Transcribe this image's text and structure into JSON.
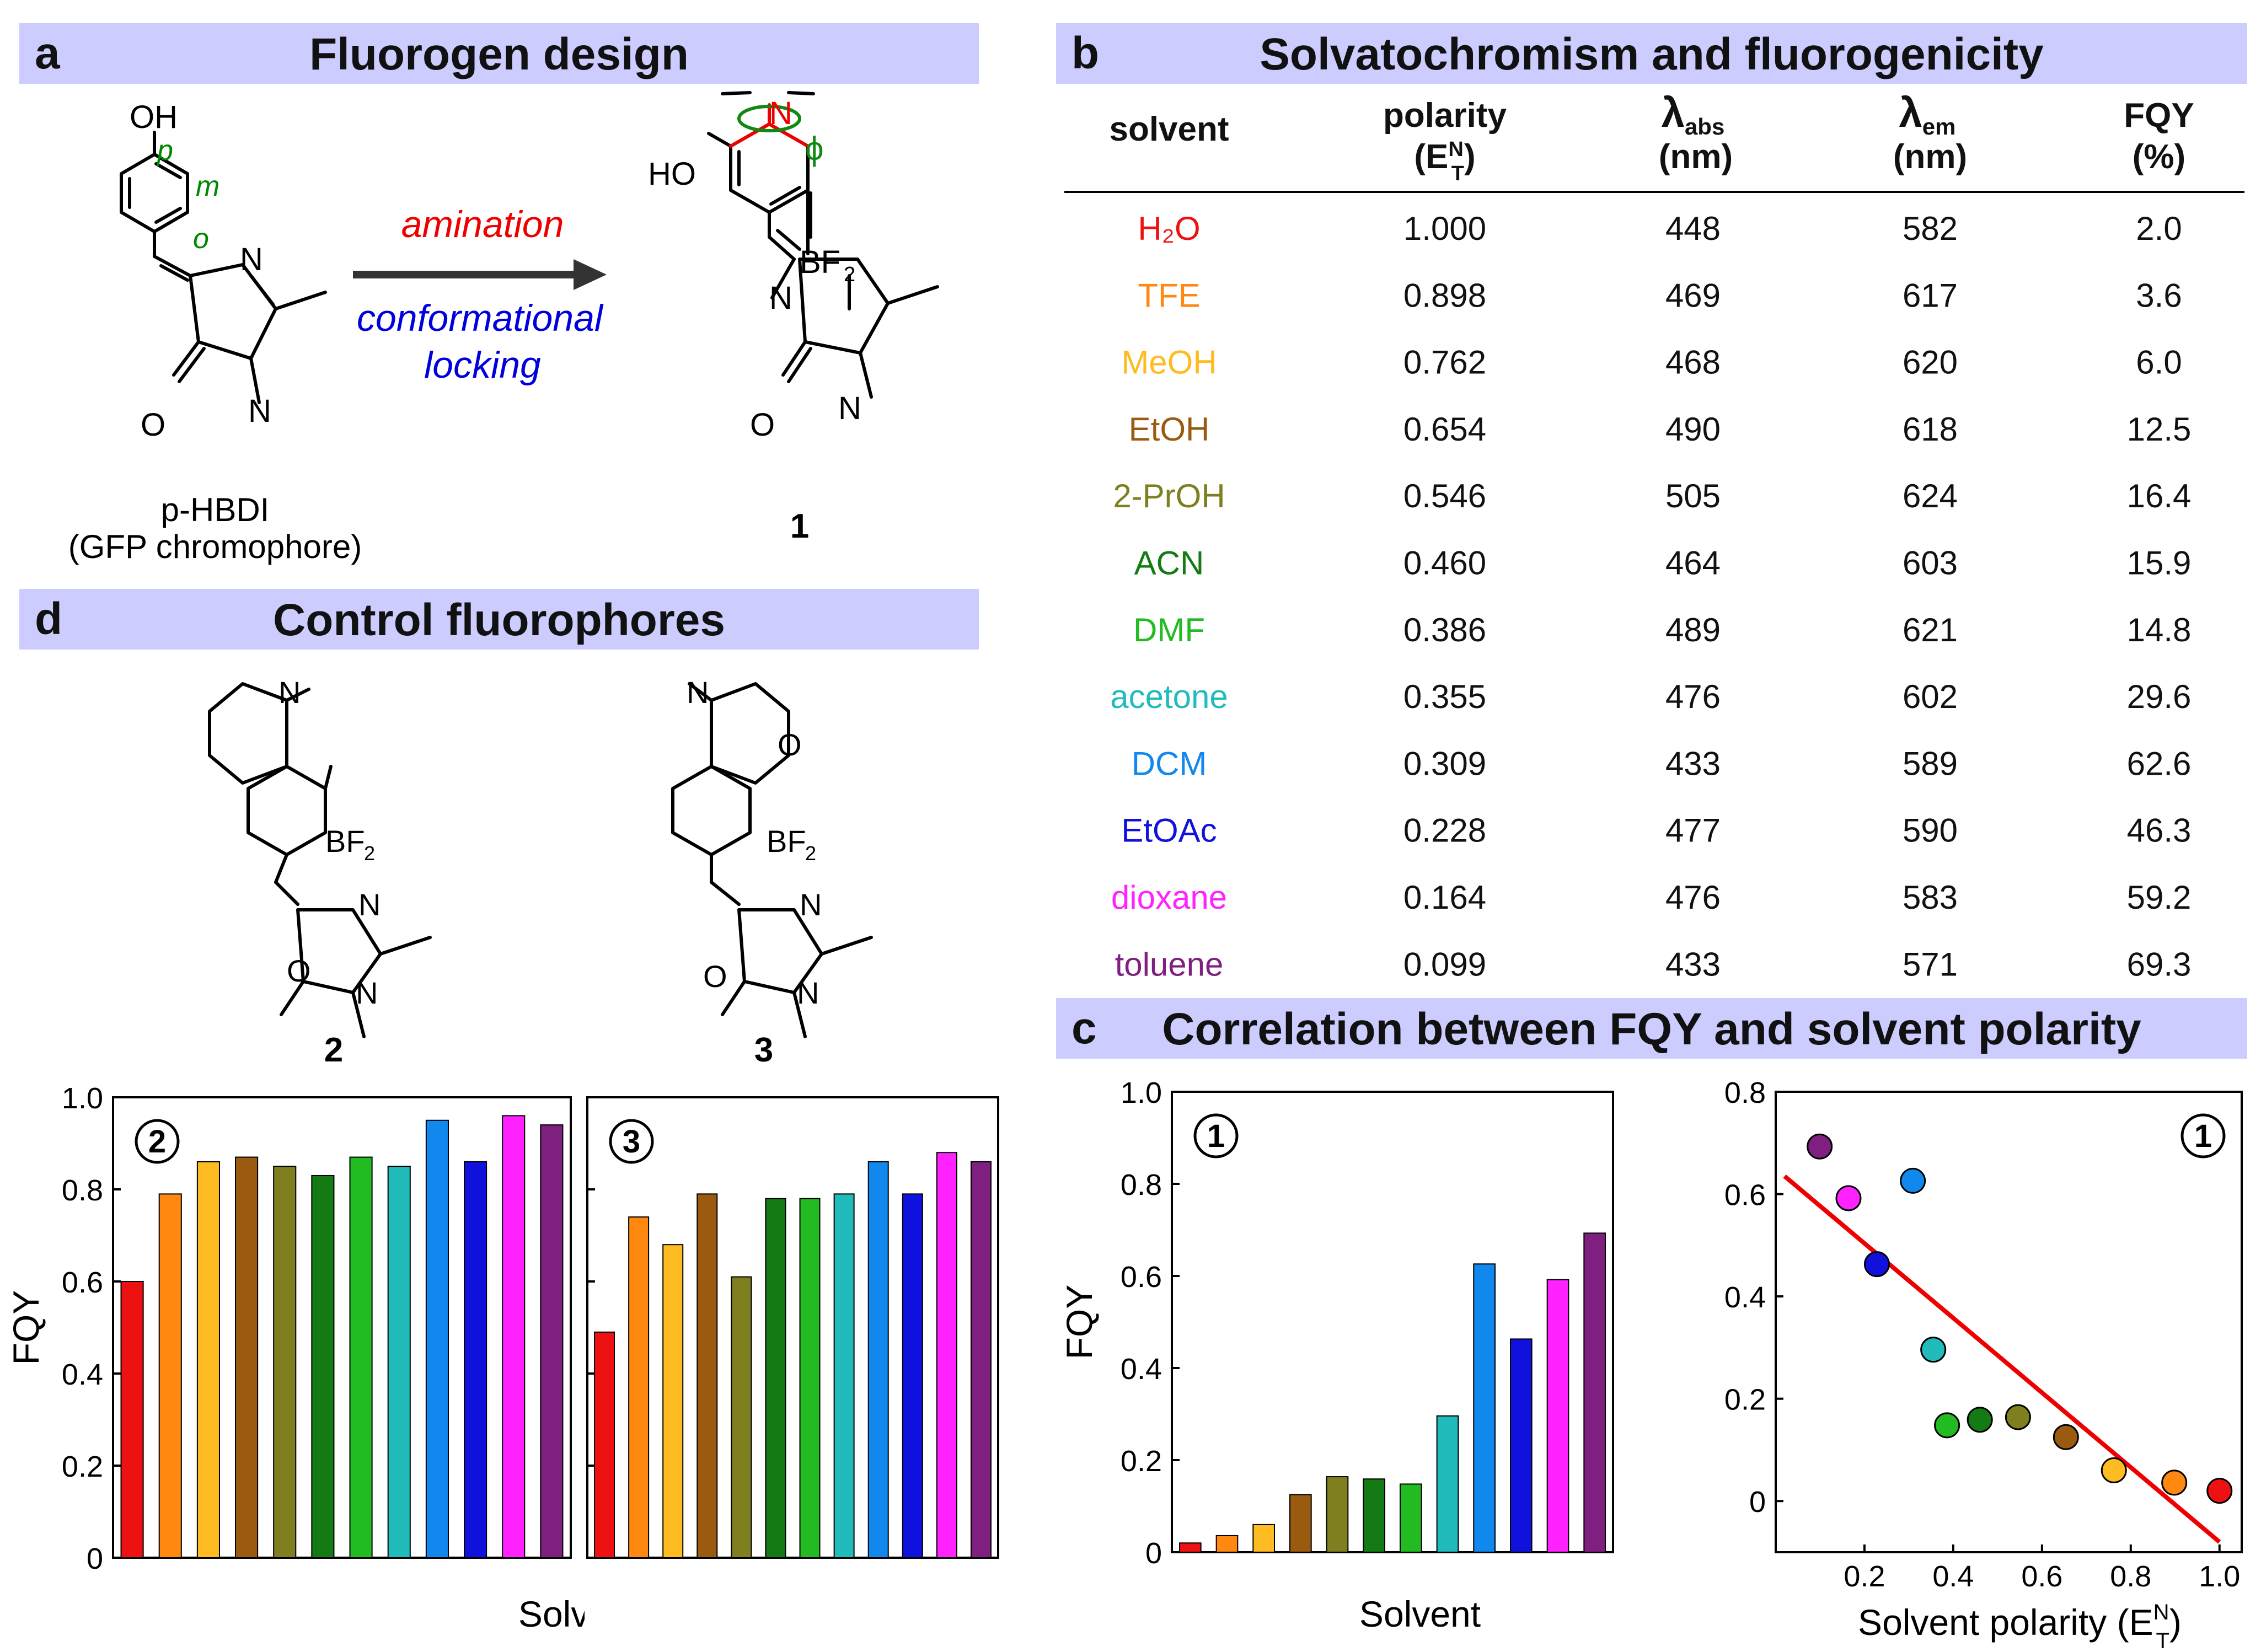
{
  "panels": {
    "a": {
      "label": "a",
      "title": "Fluorogen design"
    },
    "b": {
      "label": "b",
      "title": "Solvatochromism and fluorogenicity"
    },
    "c": {
      "label": "c",
      "title": "Correlation between FQY and solvent polarity"
    },
    "d": {
      "label": "d",
      "title": "Control fluorophores"
    }
  },
  "scheme_a": {
    "left_caption": [
      "p-HBDI",
      "(GFP chromophore)"
    ],
    "arrow_top": "amination",
    "arrow_bottom": [
      "conformational",
      "locking"
    ],
    "ring_labels": [
      "p",
      "m",
      "o"
    ],
    "compound_label": "1",
    "phi": "ϕ",
    "colors": {
      "amination": "#ee0000",
      "locking": "#0000dd",
      "ring_labels": "#008800"
    }
  },
  "scheme_d": {
    "labels": [
      "2",
      "3"
    ]
  },
  "table": {
    "headers": {
      "solvent": "solvent",
      "polarity": "polarity",
      "polarity_sym": "(E",
      "polarity_sup": "N",
      "polarity_sub": "T",
      "polarity_close": ")",
      "abs": "λ",
      "abs_sub": "abs",
      "em": "λ",
      "em_sub": "em",
      "unit": "(nm)",
      "fqy": "FQY",
      "fqy_unit": "(%)"
    },
    "rows": [
      {
        "solvent": "H₂O",
        "color": "#ee1111",
        "polarity": "1.000",
        "abs": "448",
        "em": "582",
        "fqy": "2.0"
      },
      {
        "solvent": "TFE",
        "color": "#ff8811",
        "polarity": "0.898",
        "abs": "469",
        "em": "617",
        "fqy": "3.6"
      },
      {
        "solvent": "MeOH",
        "color": "#ffbb22",
        "polarity": "0.762",
        "abs": "468",
        "em": "620",
        "fqy": "6.0"
      },
      {
        "solvent": "EtOH",
        "color": "#9a5a10",
        "polarity": "0.654",
        "abs": "490",
        "em": "618",
        "fqy": "12.5"
      },
      {
        "solvent": "2-PrOH",
        "color": "#7f7f1f",
        "polarity": "0.546",
        "abs": "505",
        "em": "624",
        "fqy": "16.4"
      },
      {
        "solvent": "ACN",
        "color": "#147a14",
        "polarity": "0.460",
        "abs": "464",
        "em": "603",
        "fqy": "15.9"
      },
      {
        "solvent": "DMF",
        "color": "#22bb22",
        "polarity": "0.386",
        "abs": "489",
        "em": "621",
        "fqy": "14.8"
      },
      {
        "solvent": "acetone",
        "color": "#22bbbb",
        "polarity": "0.355",
        "abs": "476",
        "em": "602",
        "fqy": "29.6"
      },
      {
        "solvent": "DCM",
        "color": "#1188ee",
        "polarity": "0.309",
        "abs": "433",
        "em": "589",
        "fqy": "62.6"
      },
      {
        "solvent": "EtOAc",
        "color": "#1111dd",
        "polarity": "0.228",
        "abs": "477",
        "em": "590",
        "fqy": "46.3"
      },
      {
        "solvent": "dioxane",
        "color": "#ff22ff",
        "polarity": "0.164",
        "abs": "476",
        "em": "583",
        "fqy": "59.2"
      },
      {
        "solvent": "toluene",
        "color": "#7f1f7f",
        "polarity": "0.099",
        "abs": "433",
        "em": "571",
        "fqy": "69.3"
      }
    ]
  },
  "chart_data": [
    {
      "id": "d-compound-2",
      "type": "bar",
      "badge": "2",
      "categories": [
        "H2O",
        "TFE",
        "MeOH",
        "EtOH",
        "2-PrOH",
        "ACN",
        "DMF",
        "acetone",
        "DCM",
        "EtOAc",
        "dioxane",
        "toluene"
      ],
      "values": [
        0.6,
        0.79,
        0.86,
        0.87,
        0.85,
        0.83,
        0.87,
        0.85,
        0.95,
        0.86,
        0.96,
        0.94
      ],
      "ylabel": "FQY",
      "xlabel": "Solvent",
      "ylim": [
        0,
        1.0
      ],
      "ticks": [
        "0",
        "0.2",
        "0.4",
        "0.6",
        "0.8",
        "1.0"
      ]
    },
    {
      "id": "d-compound-3",
      "type": "bar",
      "badge": "3",
      "categories": [
        "H2O",
        "TFE",
        "MeOH",
        "EtOH",
        "2-PrOH",
        "ACN",
        "DMF",
        "acetone",
        "DCM",
        "EtOAc",
        "dioxane",
        "toluene"
      ],
      "values": [
        0.49,
        0.74,
        0.68,
        0.79,
        0.61,
        0.78,
        0.78,
        0.79,
        0.86,
        0.79,
        0.88,
        0.86
      ],
      "ylim": [
        0,
        1.0
      ]
    },
    {
      "id": "c-compound-1-bar",
      "type": "bar",
      "badge": "1",
      "categories": [
        "H2O",
        "TFE",
        "MeOH",
        "EtOH",
        "2-PrOH",
        "ACN",
        "DMF",
        "acetone",
        "DCM",
        "EtOAc",
        "dioxane",
        "toluene"
      ],
      "values": [
        0.02,
        0.036,
        0.06,
        0.125,
        0.164,
        0.159,
        0.148,
        0.296,
        0.626,
        0.463,
        0.592,
        0.693
      ],
      "ylabel": "FQY",
      "xlabel": "Solvent",
      "ylim": [
        0,
        1.0
      ],
      "ticks": [
        "0",
        "0.2",
        "0.4",
        "0.6",
        "0.8",
        "1.0"
      ]
    },
    {
      "id": "c-compound-1-scatter",
      "type": "scatter",
      "badge": "1",
      "x": [
        1.0,
        0.898,
        0.762,
        0.654,
        0.546,
        0.46,
        0.386,
        0.355,
        0.309,
        0.228,
        0.164,
        0.099
      ],
      "y": [
        0.02,
        0.036,
        0.06,
        0.125,
        0.164,
        0.159,
        0.148,
        0.296,
        0.626,
        0.463,
        0.592,
        0.693
      ],
      "fit_line": {
        "x": [
          0.02,
          1.0
        ],
        "y": [
          0.635,
          -0.08
        ],
        "color": "#ee0000"
      },
      "xlabel": "Solvent polarity (E",
      "xlabel_sup": "N",
      "xlabel_sub": "T",
      "xlabel_close": ")",
      "xlim": [
        0,
        1.05
      ],
      "ylim": [
        -0.1,
        0.8
      ],
      "xticks": [
        "0.2",
        "0.4",
        "0.6",
        "0.8",
        "1.0"
      ],
      "yticks": [
        "0",
        "0.2",
        "0.4",
        "0.6",
        "0.8"
      ]
    }
  ]
}
